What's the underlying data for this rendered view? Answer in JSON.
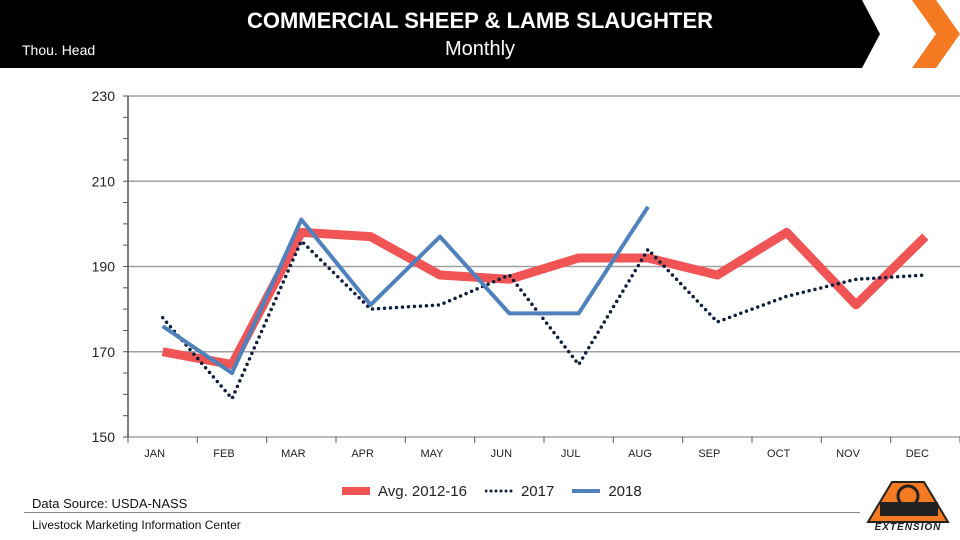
{
  "header": {
    "title": "COMMERCIAL SHEEP & LAMB SLAUGHTER",
    "subtitle": "Monthly",
    "y_unit_label": "Thou. Head"
  },
  "colors": {
    "header_bg": "#000000",
    "accent_orange": "#F47920",
    "avg": "#F05454",
    "y2017": "#0F1E3C",
    "y2018": "#4F81BD",
    "grid": "#A0A0A0"
  },
  "chart_data": {
    "type": "line",
    "title": "COMMERCIAL SHEEP & LAMB SLAUGHTER",
    "subtitle": "Monthly",
    "ylabel": "Thou. Head",
    "xlabel": "",
    "ylim": [
      150,
      230
    ],
    "yticks": [
      150,
      170,
      190,
      210,
      230
    ],
    "grid": true,
    "legend_position": "bottom",
    "categories": [
      "JAN",
      "FEB",
      "MAR",
      "APR",
      "MAY",
      "JUN",
      "JUL",
      "AUG",
      "SEP",
      "OCT",
      "NOV",
      "DEC"
    ],
    "series": [
      {
        "name": "Avg. 2012-16",
        "style": "thick",
        "values": [
          170,
          167,
          198,
          197,
          188,
          187,
          192,
          192,
          188,
          198,
          181,
          197
        ]
      },
      {
        "name": "2017",
        "style": "dotted",
        "values": [
          178,
          159,
          196,
          180,
          181,
          188,
          167,
          194,
          177,
          183,
          187,
          188
        ]
      },
      {
        "name": "2018",
        "style": "solid",
        "values": [
          176,
          165,
          201,
          181,
          197,
          179,
          179,
          204,
          null,
          null,
          null,
          null
        ]
      }
    ]
  },
  "footer": {
    "source": "Data Source:  USDA-NASS",
    "org": "Livestock Marketing Information Center",
    "logo_text": "EXTENSION"
  }
}
